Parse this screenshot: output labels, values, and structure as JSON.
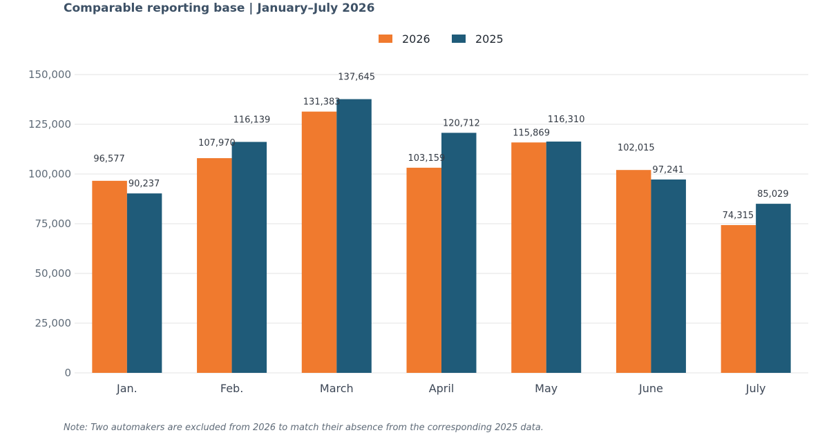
{
  "header": {
    "subtitle": "Comparable reporting base | January–July 2026"
  },
  "footer": {
    "note": "Note: Two automakers are excluded from 2026 to match their absence from the corresponding 2025 data."
  },
  "colors": {
    "series_2026": "#f07a2e",
    "series_2025": "#1f5b79",
    "grid": "#e3e3e3"
  },
  "chart_data": {
    "type": "bar",
    "categories": [
      "Jan.",
      "Feb.",
      "March",
      "April",
      "May",
      "June",
      "July"
    ],
    "series": [
      {
        "name": "2026",
        "values": [
          96577,
          107970,
          131383,
          103159,
          115869,
          102015,
          74315
        ],
        "labels": [
          "96,577",
          "107,970",
          "131,383",
          "103,159",
          "115,869",
          "102,015",
          "74,315"
        ]
      },
      {
        "name": "2025",
        "values": [
          90237,
          116139,
          137645,
          120712,
          116310,
          97241,
          85029
        ],
        "labels": [
          "90,237",
          "116,139",
          "137,645",
          "120,712",
          "116,310",
          "97,241",
          "85,029"
        ]
      }
    ],
    "yticks": [
      "0",
      "25,000",
      "50,000",
      "75,000",
      "100,000",
      "125,000",
      "150,000"
    ],
    "ylim": [
      0,
      150000
    ],
    "grid": true,
    "legend": "top-center"
  }
}
